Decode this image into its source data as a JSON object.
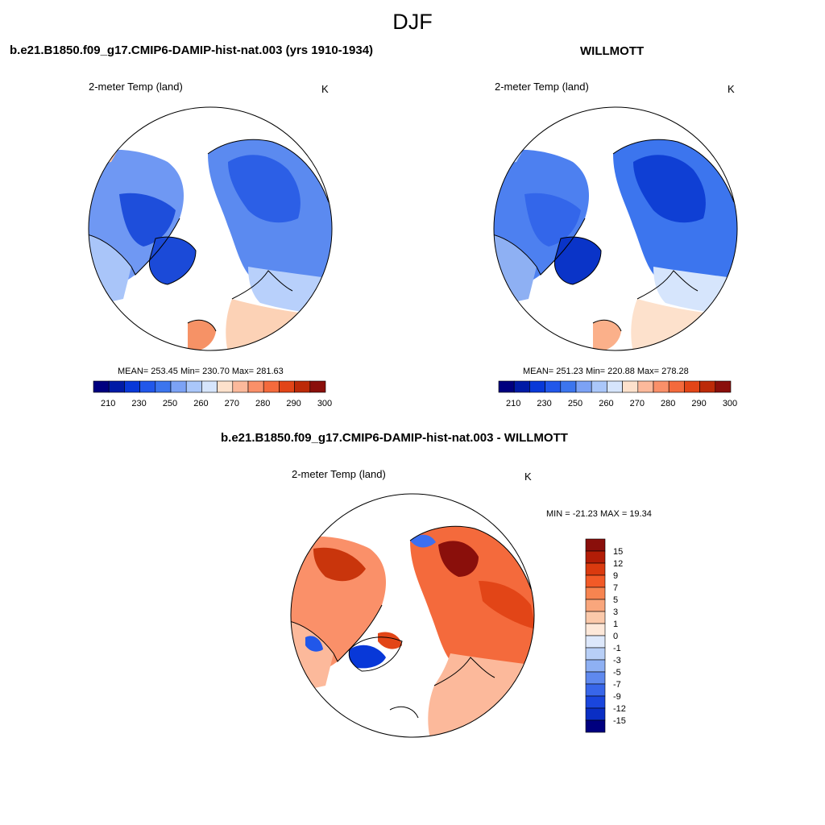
{
  "figure": {
    "title": "DJF",
    "colors": {
      "cold_scale": [
        "#00007f",
        "#001ba6",
        "#0838d8",
        "#2157ea",
        "#3c75ee",
        "#7ca2f5",
        "#aac7fa",
        "#d6e5fc",
        "#fde1cc",
        "#fcb99b",
        "#fa9069",
        "#f46a3c",
        "#e24517",
        "#bc2a08",
        "#8a0f0b"
      ],
      "land_mask": "#ffffff",
      "coastline": "#000000"
    },
    "panels": {
      "model": {
        "title": "b.e21.B1850.f09_g17.CMIP6-DAMIP-hist-nat.003 (yrs 1910-1934)",
        "variable": "2-meter Temp (land)",
        "units": "K",
        "stats": "MEAN= 253.45  Min= 230.70  Max= 281.63",
        "colorbar_labels": [
          "210",
          "230",
          "250",
          "260",
          "270",
          "280",
          "290",
          "300"
        ]
      },
      "obs": {
        "title": "WILLMOTT",
        "variable": "2-meter Temp (land)",
        "units": "K",
        "stats": "MEAN= 251.23  Min= 220.88  Max= 278.28",
        "colorbar_labels": [
          "210",
          "230",
          "250",
          "260",
          "270",
          "280",
          "290",
          "300"
        ]
      },
      "diff": {
        "title": "b.e21.B1850.f09_g17.CMIP6-DAMIP-hist-nat.003 - WILLMOTT",
        "variable": "2-meter Temp (land)",
        "units": "K",
        "stats": "MIN = -21.23 MAX =  19.34",
        "colorbar_labels": [
          "15",
          "12",
          "9",
          "7",
          "5",
          "3",
          "1",
          "0",
          "-1",
          "-3",
          "-5",
          "-7",
          "-9",
          "-12",
          "-15"
        ],
        "colorbar_colors": [
          "#8a0f0b",
          "#b31d07",
          "#da3a0f",
          "#f25a27",
          "#f78450",
          "#f9a67c",
          "#fbc9aa",
          "#fde8d9",
          "#dde8fb",
          "#b8cff7",
          "#8eb0f3",
          "#5f89ee",
          "#3866e9",
          "#1a46dd",
          "#0a2ec4",
          "#00007f"
        ]
      }
    }
  }
}
